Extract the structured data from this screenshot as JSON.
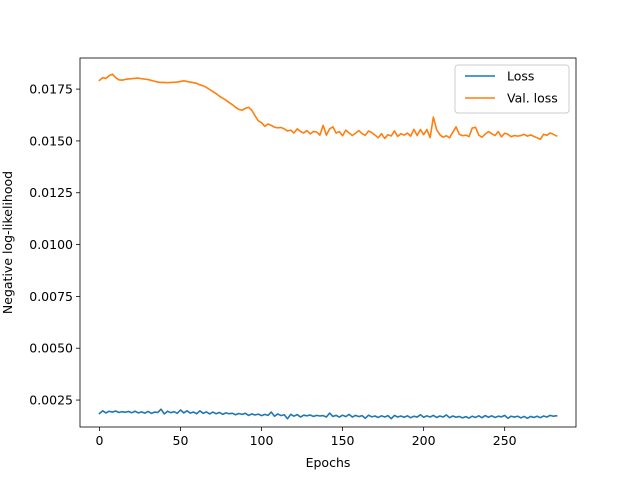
{
  "chart_data": {
    "type": "line",
    "title": "",
    "xlabel": "Epochs",
    "ylabel": "Negative log-likelihood",
    "xlim": [
      -12,
      294
    ],
    "ylim": [
      0.0012,
      0.019
    ],
    "xticks": [
      0,
      50,
      100,
      150,
      200,
      250
    ],
    "yticks": [
      0.0025,
      0.005,
      0.0075,
      0.01,
      0.0125,
      0.015,
      0.0175
    ],
    "ytick_labels": [
      "0.0025",
      "0.0050",
      "0.0075",
      "0.0100",
      "0.0125",
      "0.0150",
      "0.0175"
    ],
    "grid": false,
    "legend_position": "top-right",
    "series": [
      {
        "name": "Loss",
        "color": "#1f77b4",
        "x": [
          0,
          2,
          4,
          6,
          8,
          10,
          12,
          14,
          16,
          18,
          20,
          22,
          24,
          26,
          28,
          30,
          32,
          34,
          36,
          38,
          40,
          42,
          44,
          46,
          48,
          50,
          52,
          54,
          56,
          58,
          60,
          62,
          64,
          66,
          68,
          70,
          72,
          74,
          76,
          78,
          80,
          82,
          84,
          86,
          88,
          90,
          92,
          94,
          96,
          98,
          100,
          102,
          104,
          106,
          108,
          110,
          112,
          114,
          116,
          118,
          120,
          122,
          124,
          126,
          128,
          130,
          132,
          134,
          136,
          138,
          140,
          142,
          144,
          146,
          148,
          150,
          152,
          154,
          156,
          158,
          160,
          162,
          164,
          166,
          168,
          170,
          172,
          174,
          176,
          178,
          180,
          182,
          184,
          186,
          188,
          190,
          192,
          194,
          196,
          198,
          200,
          202,
          204,
          206,
          208,
          210,
          212,
          214,
          216,
          218,
          220,
          222,
          224,
          226,
          228,
          230,
          232,
          234,
          236,
          238,
          240,
          242,
          244,
          246,
          248,
          250,
          252,
          254,
          256,
          258,
          260,
          262,
          264,
          266,
          268,
          270,
          272,
          274,
          276,
          278,
          280,
          282
        ],
        "values": [
          0.00185,
          0.00198,
          0.00188,
          0.00196,
          0.00192,
          0.00197,
          0.0019,
          0.00194,
          0.00191,
          0.00195,
          0.00189,
          0.00196,
          0.00188,
          0.00193,
          0.00187,
          0.00195,
          0.00186,
          0.00192,
          0.0019,
          0.00206,
          0.00183,
          0.00196,
          0.00189,
          0.00194,
          0.00186,
          0.00202,
          0.00188,
          0.00198,
          0.00187,
          0.00192,
          0.00184,
          0.00198,
          0.00186,
          0.00193,
          0.00183,
          0.00192,
          0.00184,
          0.0019,
          0.00181,
          0.00188,
          0.00184,
          0.00186,
          0.00179,
          0.00185,
          0.00181,
          0.00186,
          0.00176,
          0.00183,
          0.00178,
          0.00182,
          0.00175,
          0.00181,
          0.00176,
          0.00192,
          0.00172,
          0.00183,
          0.00175,
          0.00179,
          0.0016,
          0.00181,
          0.00172,
          0.0018,
          0.00168,
          0.00177,
          0.00174,
          0.00178,
          0.00171,
          0.00176,
          0.00173,
          0.00175,
          0.00168,
          0.00187,
          0.00171,
          0.00176,
          0.00168,
          0.00177,
          0.0017,
          0.00181,
          0.00168,
          0.00176,
          0.0017,
          0.00175,
          0.00162,
          0.00177,
          0.00169,
          0.00173,
          0.00166,
          0.00174,
          0.00168,
          0.00175,
          0.0016,
          0.00176,
          0.00168,
          0.00173,
          0.00167,
          0.00174,
          0.00165,
          0.00172,
          0.00168,
          0.00179,
          0.00167,
          0.00174,
          0.00168,
          0.00176,
          0.00166,
          0.00173,
          0.00168,
          0.00178,
          0.00165,
          0.00173,
          0.00167,
          0.00171,
          0.00164,
          0.0017,
          0.00163,
          0.00172,
          0.00166,
          0.00174,
          0.00165,
          0.00175,
          0.00167,
          0.00174,
          0.00166,
          0.00172,
          0.00169,
          0.00176,
          0.00162,
          0.00172,
          0.00168,
          0.00172,
          0.00164,
          0.00171,
          0.00162,
          0.00171,
          0.00166,
          0.00172,
          0.00165,
          0.00173,
          0.00168,
          0.00176,
          0.00172,
          0.00174
        ]
      },
      {
        "name": "Val. loss",
        "color": "#ff7f0e",
        "x": [
          0,
          2,
          4,
          6,
          8,
          10,
          12,
          14,
          16,
          18,
          20,
          22,
          24,
          26,
          28,
          30,
          32,
          34,
          36,
          38,
          40,
          42,
          44,
          46,
          48,
          50,
          52,
          54,
          56,
          58,
          60,
          62,
          64,
          66,
          68,
          70,
          72,
          74,
          76,
          78,
          80,
          82,
          84,
          86,
          88,
          90,
          92,
          94,
          96,
          98,
          100,
          102,
          104,
          106,
          108,
          110,
          112,
          114,
          116,
          118,
          120,
          122,
          124,
          126,
          128,
          130,
          132,
          134,
          136,
          138,
          140,
          142,
          144,
          146,
          148,
          150,
          152,
          154,
          156,
          158,
          160,
          162,
          164,
          166,
          168,
          170,
          172,
          174,
          176,
          178,
          180,
          182,
          184,
          186,
          188,
          190,
          192,
          194,
          196,
          198,
          200,
          202,
          204,
          206,
          208,
          210,
          212,
          214,
          216,
          218,
          220,
          222,
          224,
          226,
          228,
          230,
          232,
          234,
          236,
          238,
          240,
          242,
          244,
          246,
          248,
          250,
          252,
          254,
          256,
          258,
          260,
          262,
          264,
          266,
          268,
          270,
          272,
          274,
          276,
          278,
          280,
          282
        ],
        "values": [
          0.01792,
          0.01805,
          0.01801,
          0.01815,
          0.01822,
          0.01805,
          0.01795,
          0.01793,
          0.01797,
          0.01799,
          0.018,
          0.01802,
          0.01803,
          0.018,
          0.01798,
          0.01796,
          0.01792,
          0.01788,
          0.01784,
          0.01782,
          0.01782,
          0.01781,
          0.01782,
          0.01783,
          0.01784,
          0.01787,
          0.0179,
          0.01787,
          0.01784,
          0.01781,
          0.01778,
          0.0177,
          0.01766,
          0.01758,
          0.01748,
          0.01738,
          0.01728,
          0.01716,
          0.01706,
          0.01697,
          0.01685,
          0.01675,
          0.01662,
          0.01652,
          0.01648,
          0.01657,
          0.01662,
          0.01648,
          0.01621,
          0.01597,
          0.01588,
          0.0157,
          0.01582,
          0.01575,
          0.01566,
          0.01563,
          0.01565,
          0.01558,
          0.01548,
          0.01552,
          0.01538,
          0.01558,
          0.01546,
          0.01538,
          0.0155,
          0.01534,
          0.01545,
          0.01543,
          0.01528,
          0.01575,
          0.01528,
          0.01558,
          0.01568,
          0.01538,
          0.01545,
          0.01525,
          0.01552,
          0.01538,
          0.01526,
          0.01537,
          0.0155,
          0.01535,
          0.01527,
          0.01548,
          0.0154,
          0.01528,
          0.01515,
          0.01535,
          0.01512,
          0.0153,
          0.01524,
          0.01548,
          0.01522,
          0.01535,
          0.01528,
          0.01538,
          0.01523,
          0.01556,
          0.01526,
          0.01555,
          0.0153,
          0.01555,
          0.01516,
          0.01615,
          0.01555,
          0.0153,
          0.01518,
          0.01525,
          0.01515,
          0.01542,
          0.01568,
          0.01532,
          0.01525,
          0.01528,
          0.01521,
          0.01562,
          0.01566,
          0.01528,
          0.01518,
          0.01533,
          0.01545,
          0.01535,
          0.01526,
          0.01545,
          0.0152,
          0.01537,
          0.01532,
          0.0152,
          0.01526,
          0.01523,
          0.01526,
          0.01532,
          0.01523,
          0.01529,
          0.01522,
          0.01515,
          0.01508,
          0.01532,
          0.01527,
          0.01538,
          0.01532,
          0.01524
        ]
      }
    ]
  }
}
